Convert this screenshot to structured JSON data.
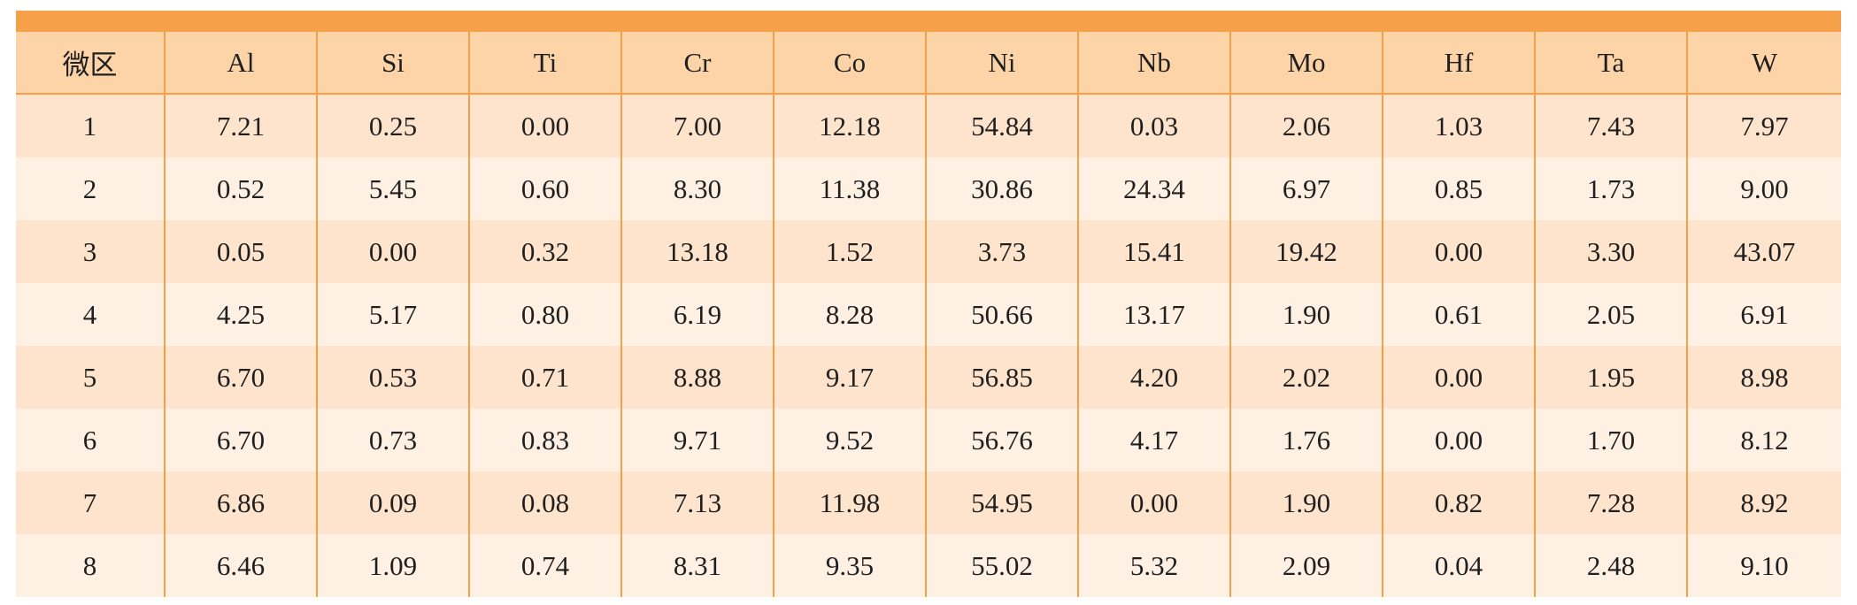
{
  "table": {
    "headers": [
      "微区",
      "Al",
      "Si",
      "Ti",
      "Cr",
      "Co",
      "Ni",
      "Nb",
      "Mo",
      "Hf",
      "Ta",
      "W"
    ],
    "rows": [
      [
        "1",
        "7.21",
        "0.25",
        "0.00",
        "7.00",
        "12.18",
        "54.84",
        "0.03",
        "2.06",
        "1.03",
        "7.43",
        "7.97"
      ],
      [
        "2",
        "0.52",
        "5.45",
        "0.60",
        "8.30",
        "11.38",
        "30.86",
        "24.34",
        "6.97",
        "0.85",
        "1.73",
        "9.00"
      ],
      [
        "3",
        "0.05",
        "0.00",
        "0.32",
        "13.18",
        "1.52",
        "3.73",
        "15.41",
        "19.42",
        "0.00",
        "3.30",
        "43.07"
      ],
      [
        "4",
        "4.25",
        "5.17",
        "0.80",
        "6.19",
        "8.28",
        "50.66",
        "13.17",
        "1.90",
        "0.61",
        "2.05",
        "6.91"
      ],
      [
        "5",
        "6.70",
        "0.53",
        "0.71",
        "8.88",
        "9.17",
        "56.85",
        "4.20",
        "2.02",
        "0.00",
        "1.95",
        "8.98"
      ],
      [
        "6",
        "6.70",
        "0.73",
        "0.83",
        "9.71",
        "9.52",
        "56.76",
        "4.17",
        "1.76",
        "0.00",
        "1.70",
        "8.12"
      ],
      [
        "7",
        "6.86",
        "0.09",
        "0.08",
        "7.13",
        "11.98",
        "54.95",
        "0.00",
        "1.90",
        "0.82",
        "7.28",
        "8.92"
      ],
      [
        "8",
        "6.46",
        "1.09",
        "0.74",
        "8.31",
        "9.35",
        "55.02",
        "5.32",
        "2.09",
        "0.04",
        "2.48",
        "9.10"
      ]
    ]
  },
  "colors": {
    "accent": "#f7a04a",
    "header_bg": "#fdd3a8",
    "row_odd_bg": "#fee4cc",
    "row_even_bg": "#fef0e3"
  }
}
